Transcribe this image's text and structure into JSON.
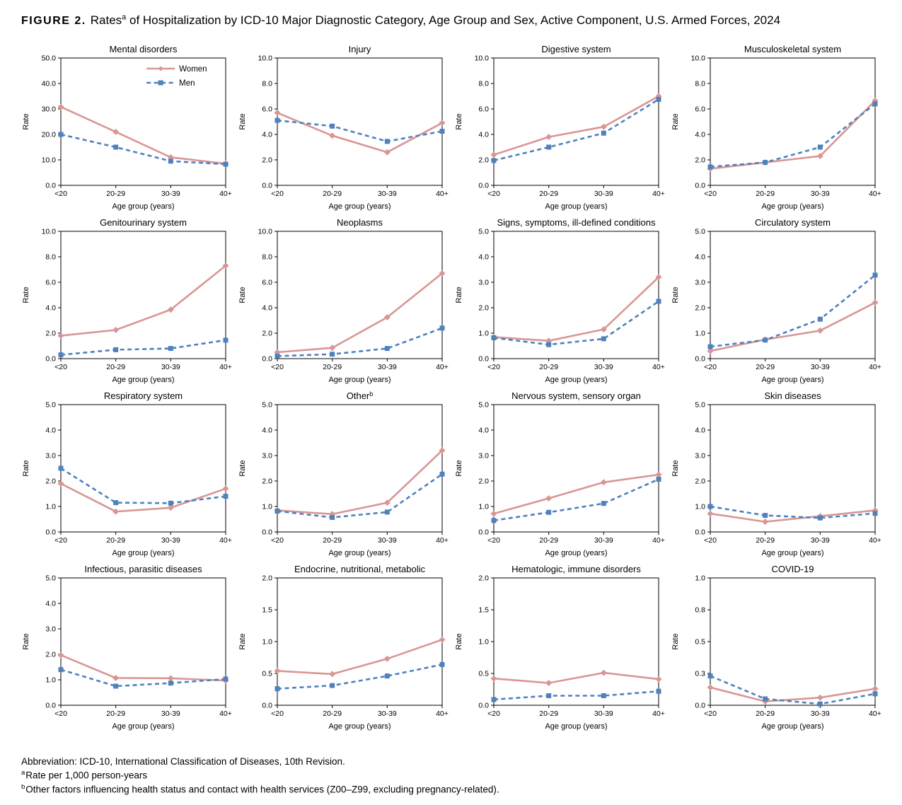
{
  "header": {
    "label": "FIGURE 2.",
    "title_pre": "Rates",
    "title_sup": "a",
    "title_post": " of Hospitalization by ICD-10 Major Diagnostic Category, Age Group and Sex, Active Component, U.S. Armed Forces, 2024"
  },
  "colors": {
    "women": "#D99694",
    "men": "#4F81BD",
    "axis": "#000000"
  },
  "legend_labels": {
    "women": "Women",
    "men": "Men"
  },
  "shared": {
    "categories": [
      "<20",
      "20-29",
      "30-39",
      "40+"
    ],
    "xlabel": "Age group (years)",
    "ylabel": "Rate",
    "grid": false,
    "legend_position": "top-right-inside-first-chart-only"
  },
  "chart_data": [
    {
      "type": "line",
      "title": "Mental disorders",
      "ylim": [
        0,
        50
      ],
      "yticks": [
        "0.0",
        "10.0",
        "20.0",
        "30.0",
        "40.0",
        "50.0"
      ],
      "legend": true,
      "series": [
        {
          "name": "Women",
          "values": [
            30.8,
            21.0,
            11.0,
            8.5
          ]
        },
        {
          "name": "Men",
          "values": [
            20.0,
            15.0,
            9.5,
            8.3
          ]
        }
      ]
    },
    {
      "type": "line",
      "title": "Injury",
      "ylim": [
        0,
        10
      ],
      "yticks": [
        "0.0",
        "2.0",
        "4.0",
        "6.0",
        "8.0",
        "10.0"
      ],
      "legend": false,
      "series": [
        {
          "name": "Women",
          "values": [
            5.7,
            3.9,
            2.6,
            4.9
          ]
        },
        {
          "name": "Men",
          "values": [
            5.1,
            4.65,
            3.45,
            4.25
          ]
        }
      ]
    },
    {
      "type": "line",
      "title": "Digestive system",
      "ylim": [
        0,
        10
      ],
      "yticks": [
        "0.0",
        "2.0",
        "4.0",
        "6.0",
        "8.0",
        "10.0"
      ],
      "legend": false,
      "series": [
        {
          "name": "Women",
          "values": [
            2.4,
            3.8,
            4.6,
            7.0
          ]
        },
        {
          "name": "Men",
          "values": [
            1.95,
            3.0,
            4.1,
            6.75
          ]
        }
      ]
    },
    {
      "type": "line",
      "title": "Musculoskeletal system",
      "ylim": [
        0,
        10
      ],
      "yticks": [
        "0.0",
        "2.0",
        "4.0",
        "6.0",
        "8.0",
        "10.0"
      ],
      "legend": false,
      "series": [
        {
          "name": "Women",
          "values": [
            1.3,
            1.8,
            2.3,
            6.65
          ]
        },
        {
          "name": "Men",
          "values": [
            1.45,
            1.8,
            3.0,
            6.4
          ]
        }
      ]
    },
    {
      "type": "line",
      "title": "Genitourinary system",
      "ylim": [
        0,
        10
      ],
      "yticks": [
        "0.0",
        "2.0",
        "4.0",
        "6.0",
        "8.0",
        "10.0"
      ],
      "legend": false,
      "series": [
        {
          "name": "Women",
          "values": [
            1.8,
            2.25,
            3.85,
            7.3
          ]
        },
        {
          "name": "Men",
          "values": [
            0.3,
            0.7,
            0.8,
            1.45
          ]
        }
      ]
    },
    {
      "type": "line",
      "title": "Neoplasms",
      "ylim": [
        0,
        10
      ],
      "yticks": [
        "0.0",
        "2.0",
        "4.0",
        "6.0",
        "8.0",
        "10.0"
      ],
      "legend": false,
      "series": [
        {
          "name": "Women",
          "values": [
            0.5,
            0.85,
            3.25,
            6.7
          ]
        },
        {
          "name": "Men",
          "values": [
            0.2,
            0.35,
            0.8,
            2.4
          ]
        }
      ]
    },
    {
      "type": "line",
      "title": "Signs, symptoms, ill-defined conditions",
      "ylim": [
        0,
        5
      ],
      "yticks": [
        "0.0",
        "1.0",
        "2.0",
        "3.0",
        "4.0",
        "5.0"
      ],
      "legend": false,
      "series": [
        {
          "name": "Women",
          "values": [
            0.85,
            0.7,
            1.15,
            3.2
          ]
        },
        {
          "name": "Men",
          "values": [
            0.82,
            0.55,
            0.78,
            2.25
          ]
        }
      ]
    },
    {
      "type": "line",
      "title": "Circulatory system",
      "ylim": [
        0,
        5
      ],
      "yticks": [
        "0.0",
        "1.0",
        "2.0",
        "3.0",
        "4.0",
        "5.0"
      ],
      "legend": false,
      "series": [
        {
          "name": "Women",
          "values": [
            0.3,
            0.75,
            1.1,
            2.2
          ]
        },
        {
          "name": "Men",
          "values": [
            0.47,
            0.73,
            1.55,
            3.28
          ]
        }
      ]
    },
    {
      "type": "line",
      "title": "Respiratory system",
      "ylim": [
        0,
        5
      ],
      "yticks": [
        "0.0",
        "1.0",
        "2.0",
        "3.0",
        "4.0",
        "5.0"
      ],
      "legend": false,
      "series": [
        {
          "name": "Women",
          "values": [
            1.9,
            0.8,
            0.95,
            1.7
          ]
        },
        {
          "name": "Men",
          "values": [
            2.5,
            1.15,
            1.13,
            1.4
          ]
        }
      ]
    },
    {
      "type": "line",
      "title": "Other",
      "title_sup": "b",
      "ylim": [
        0,
        5
      ],
      "yticks": [
        "0.0",
        "1.0",
        "2.0",
        "3.0",
        "4.0",
        "5.0"
      ],
      "legend": false,
      "series": [
        {
          "name": "Women",
          "values": [
            0.85,
            0.7,
            1.15,
            3.2
          ]
        },
        {
          "name": "Men",
          "values": [
            0.82,
            0.57,
            0.78,
            2.27
          ]
        }
      ]
    },
    {
      "type": "line",
      "title": "Nervous system, sensory organ",
      "ylim": [
        0,
        5
      ],
      "yticks": [
        "0.0",
        "1.0",
        "2.0",
        "3.0",
        "4.0",
        "5.0"
      ],
      "legend": false,
      "series": [
        {
          "name": "Women",
          "values": [
            0.72,
            1.32,
            1.95,
            2.25
          ]
        },
        {
          "name": "Men",
          "values": [
            0.45,
            0.77,
            1.12,
            2.07
          ]
        }
      ]
    },
    {
      "type": "line",
      "title": "Skin diseases",
      "ylim": [
        0,
        5
      ],
      "yticks": [
        "0.0",
        "1.0",
        "2.0",
        "3.0",
        "4.0",
        "5.0"
      ],
      "legend": false,
      "series": [
        {
          "name": "Women",
          "values": [
            0.72,
            0.4,
            0.62,
            0.85
          ]
        },
        {
          "name": "Men",
          "values": [
            1.0,
            0.65,
            0.55,
            0.73
          ]
        }
      ]
    },
    {
      "type": "line",
      "title": "Infectious, parasitic diseases",
      "ylim": [
        0,
        5
      ],
      "yticks": [
        "0.0",
        "1.0",
        "2.0",
        "3.0",
        "4.0",
        "5.0"
      ],
      "legend": false,
      "series": [
        {
          "name": "Women",
          "values": [
            1.97,
            1.07,
            1.06,
            0.97
          ]
        },
        {
          "name": "Men",
          "values": [
            1.4,
            0.75,
            0.87,
            1.03
          ]
        }
      ]
    },
    {
      "type": "line",
      "title": "Endocrine, nutritional, metabolic",
      "ylim": [
        0,
        2
      ],
      "yticks": [
        "0.0",
        "0.5",
        "1.0",
        "1.5",
        "2.0"
      ],
      "legend": false,
      "series": [
        {
          "name": "Women",
          "values": [
            0.54,
            0.49,
            0.73,
            1.03
          ]
        },
        {
          "name": "Men",
          "values": [
            0.26,
            0.31,
            0.46,
            0.64
          ]
        }
      ]
    },
    {
      "type": "line",
      "title": "Hematologic, immune disorders",
      "ylim": [
        0,
        2
      ],
      "yticks": [
        "0.0",
        "0.5",
        "1.0",
        "1.5",
        "2.0"
      ],
      "legend": false,
      "series": [
        {
          "name": "Women",
          "values": [
            0.42,
            0.35,
            0.51,
            0.41
          ]
        },
        {
          "name": "Men",
          "values": [
            0.09,
            0.15,
            0.15,
            0.22
          ]
        }
      ]
    },
    {
      "type": "line",
      "title": "COVID-19",
      "ylim": [
        0,
        1
      ],
      "yticks": [
        "0.0",
        "0.3",
        "0.5",
        "0.8",
        "1.0"
      ],
      "legend": false,
      "series": [
        {
          "name": "Women",
          "values": [
            0.14,
            0.03,
            0.06,
            0.13
          ]
        },
        {
          "name": "Men",
          "values": [
            0.23,
            0.05,
            0.01,
            0.09
          ]
        }
      ]
    }
  ],
  "footnotes": [
    {
      "sup": "",
      "text": "Abbreviation: ICD-10, International Classification of Diseases, 10th Revision."
    },
    {
      "sup": "a",
      "text": "Rate per 1,000 person-years"
    },
    {
      "sup": "b",
      "text": "Other factors influencing health status and contact with health services (Z00–Z99, excluding pregnancy-related)."
    }
  ]
}
